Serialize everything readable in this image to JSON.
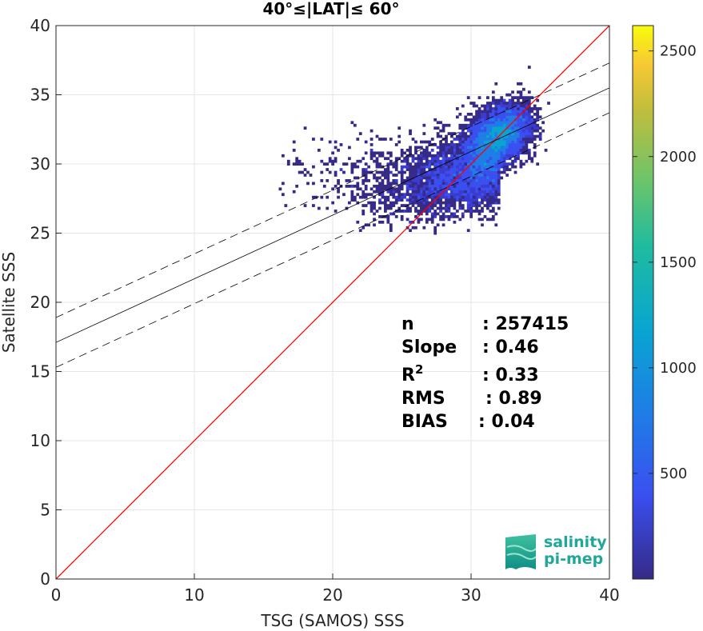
{
  "chart_data": {
    "type": "heatmap",
    "title": "40°≤|LAT|≤ 60°",
    "xlabel": "TSG (SAMOS) SSS",
    "ylabel": "Satellite SSS",
    "xlim": [
      0,
      40
    ],
    "ylim": [
      0,
      40
    ],
    "xticks": [
      "0",
      "10",
      "20",
      "30",
      "40"
    ],
    "yticks": [
      "0",
      "5",
      "10",
      "15",
      "20",
      "25",
      "30",
      "35",
      "40"
    ],
    "grid": true,
    "colorbar": {
      "range": [
        0,
        2620
      ],
      "ticks": [
        "500",
        "1000",
        "1500",
        "2000",
        "2500"
      ],
      "colormap": "parula"
    },
    "density_center": {
      "x": 32,
      "y": 32
    },
    "density_spread": {
      "x": [
        16,
        37
      ],
      "y": [
        25,
        40
      ]
    },
    "identity_line": {
      "slope": 1,
      "intercept": 0,
      "color": "#ff0000"
    },
    "fit_line": {
      "slope": 0.46,
      "intercept": 17.1,
      "color": "#000000"
    },
    "fit_bounds": [
      {
        "slope": 0.46,
        "intercept": 18.9
      },
      {
        "slope": 0.46,
        "intercept": 15.3
      }
    ],
    "stats": [
      {
        "label": "n",
        "value": ": 257415"
      },
      {
        "label": "Slope",
        "value": ": 0.46"
      },
      {
        "label": "R",
        "sup": "2",
        "value": ": 0.33"
      },
      {
        "label": "RMS",
        "value": ": 0.89"
      },
      {
        "label": "BIAS",
        "value": ": 0.04"
      }
    ]
  },
  "logo": {
    "line1": "salinity",
    "line2": "pi-mep"
  }
}
